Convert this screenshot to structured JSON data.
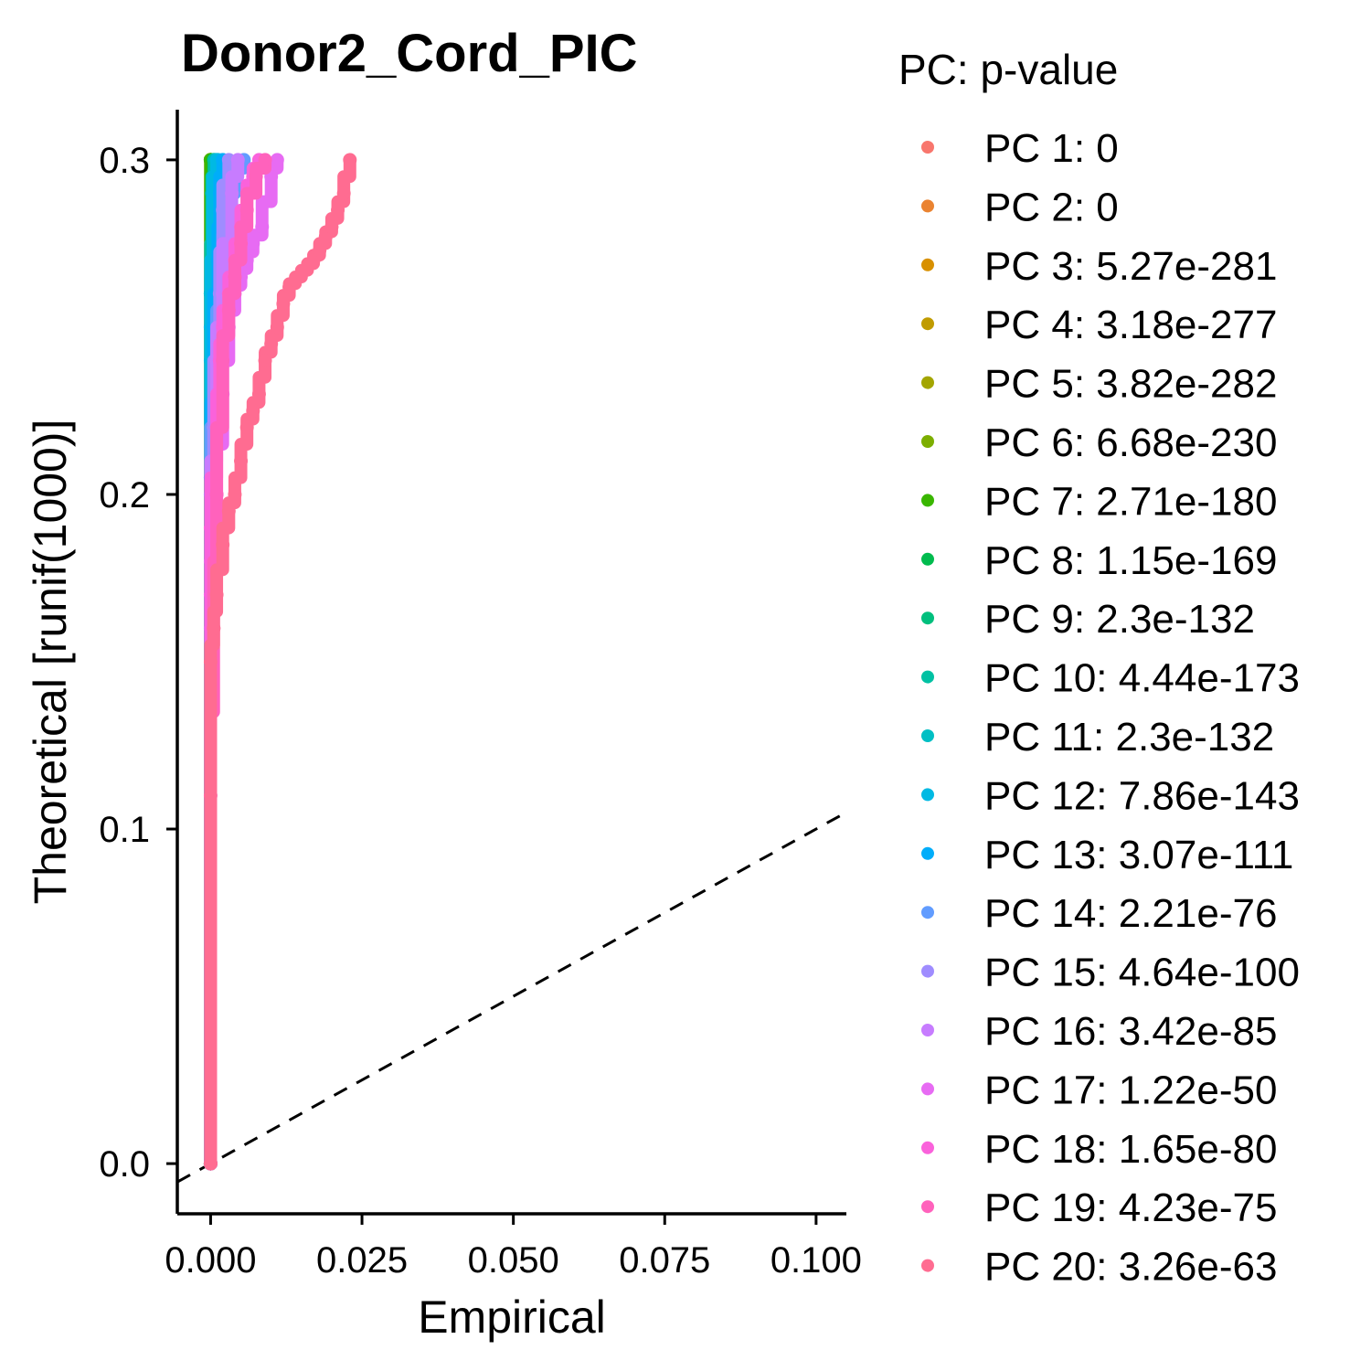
{
  "chart_data": {
    "type": "scatter",
    "title": "Donor2_Cord_PIC",
    "xlabel": "Empirical",
    "ylabel": "Theoretical [runif(1000)]",
    "xlim": [
      -0.0055,
      0.105
    ],
    "ylim": [
      -0.015,
      0.315
    ],
    "x_ticks": [
      0.0,
      0.025,
      0.05,
      0.075,
      0.1
    ],
    "x_tick_labels": [
      "0.000",
      "0.025",
      "0.050",
      "0.075",
      "0.100"
    ],
    "y_ticks": [
      0.0,
      0.1,
      0.2,
      0.3
    ],
    "y_tick_labels": [
      "0.0",
      "0.1",
      "0.2",
      "0.3"
    ],
    "grid": false,
    "legend_position": "right",
    "reference_line": {
      "style": "dashed",
      "color": "#000000",
      "slope": 1,
      "intercept": 0
    },
    "legend_title": "PC: p-value",
    "series": [
      {
        "name": "PC 1: 0",
        "color": "#F8766D",
        "x": [
          0.0,
          0.0
        ],
        "y": [
          0.0,
          0.3
        ]
      },
      {
        "name": "PC 2: 0",
        "color": "#EA8331",
        "x": [
          0.0,
          0.0
        ],
        "y": [
          0.0,
          0.3
        ]
      },
      {
        "name": "PC 3: 5.27e-281",
        "color": "#D89000",
        "x": [
          0.0,
          0.0
        ],
        "y": [
          0.0,
          0.3
        ]
      },
      {
        "name": "PC 4: 3.18e-277",
        "color": "#C09B00",
        "x": [
          0.0,
          0.0
        ],
        "y": [
          0.0,
          0.3
        ]
      },
      {
        "name": "PC 5: 3.82e-282",
        "color": "#A3A500",
        "x": [
          0.0,
          0.0
        ],
        "y": [
          0.0,
          0.3
        ]
      },
      {
        "name": "PC 6: 6.68e-230",
        "color": "#7CAE00",
        "x": [
          0.0,
          0.0
        ],
        "y": [
          0.0,
          0.3
        ]
      },
      {
        "name": "PC 7: 2.71e-180",
        "color": "#39B600",
        "x": [
          0.0,
          0.0
        ],
        "y": [
          0.0,
          0.3
        ]
      },
      {
        "name": "PC 8: 1.15e-169",
        "color": "#00BB4E",
        "x": [
          0.0,
          0.0,
          0.0002,
          0.0005
        ],
        "y": [
          0.0,
          0.26,
          0.29,
          0.3
        ]
      },
      {
        "name": "PC 9: 2.3e-132",
        "color": "#00BF7D",
        "x": [
          0.0,
          0.0,
          0.0003,
          0.0008
        ],
        "y": [
          0.0,
          0.25,
          0.29,
          0.3
        ]
      },
      {
        "name": "PC 10: 4.44e-173",
        "color": "#00C1A3",
        "x": [
          0.0,
          0.0,
          0.0002,
          0.0006
        ],
        "y": [
          0.0,
          0.26,
          0.29,
          0.3
        ]
      },
      {
        "name": "PC 11: 2.3e-132",
        "color": "#00BFC4",
        "x": [
          0.0,
          0.0,
          0.0005,
          0.0012
        ],
        "y": [
          0.0,
          0.24,
          0.29,
          0.3
        ]
      },
      {
        "name": "PC 12: 7.86e-143",
        "color": "#00B9E3",
        "x": [
          0.0,
          0.0,
          0.0004,
          0.001
        ],
        "y": [
          0.0,
          0.25,
          0.29,
          0.3
        ]
      },
      {
        "name": "PC 13: 3.07e-111",
        "color": "#00ADFA",
        "x": [
          0.0,
          0.0,
          0.0005,
          0.0012,
          0.0015,
          0.002
        ],
        "y": [
          0.0,
          0.205,
          0.25,
          0.27,
          0.29,
          0.3
        ]
      },
      {
        "name": "PC 14: 2.21e-76",
        "color": "#619CFF",
        "x": [
          0.0,
          0.0,
          0.001,
          0.002,
          0.003,
          0.004,
          0.0055
        ],
        "y": [
          0.0,
          0.2,
          0.24,
          0.27,
          0.285,
          0.295,
          0.3
        ]
      },
      {
        "name": "PC 15: 4.64e-100",
        "color": "#9F8CFF",
        "x": [
          0.0,
          0.0,
          0.0005,
          0.0015,
          0.002,
          0.003
        ],
        "y": [
          0.0,
          0.16,
          0.22,
          0.26,
          0.285,
          0.3
        ]
      },
      {
        "name": "PC 16: 3.42e-85",
        "color": "#C77CFF",
        "x": [
          0.0,
          0.0,
          0.001,
          0.002,
          0.0035,
          0.0045
        ],
        "y": [
          0.0,
          0.18,
          0.24,
          0.26,
          0.29,
          0.3
        ]
      },
      {
        "name": "PC 17: 1.22e-50",
        "color": "#E76BF3",
        "x": [
          0.0,
          0.0,
          0.001,
          0.002,
          0.003,
          0.004,
          0.005,
          0.006,
          0.007,
          0.0085,
          0.01,
          0.011
        ],
        "y": [
          0.0,
          0.17,
          0.2,
          0.23,
          0.25,
          0.26,
          0.265,
          0.27,
          0.275,
          0.28,
          0.295,
          0.3
        ]
      },
      {
        "name": "PC 18: 1.65e-80",
        "color": "#FA62DB",
        "x": [
          0.0,
          0.0,
          0.001,
          0.0015,
          0.002,
          0.003,
          0.004,
          0.005,
          0.006,
          0.007,
          0.008
        ],
        "y": [
          0.0,
          0.19,
          0.22,
          0.24,
          0.25,
          0.26,
          0.27,
          0.28,
          0.29,
          0.295,
          0.3
        ]
      },
      {
        "name": "PC 19: 4.23e-75",
        "color": "#FF62BC",
        "x": [
          0.0,
          0.0,
          0.0005,
          0.001,
          0.002,
          0.003,
          0.004,
          0.005,
          0.006,
          0.0075,
          0.009
        ],
        "y": [
          0.0,
          0.11,
          0.16,
          0.2,
          0.24,
          0.255,
          0.265,
          0.275,
          0.285,
          0.295,
          0.3
        ]
      },
      {
        "name": "PC 20: 3.26e-63",
        "color": "#FF6C91",
        "x": [
          0.0,
          0.0,
          0.0005,
          0.001,
          0.002,
          0.003,
          0.004,
          0.005,
          0.006,
          0.007,
          0.008,
          0.009,
          0.01,
          0.011,
          0.012,
          0.013,
          0.014,
          0.015,
          0.016,
          0.017,
          0.018,
          0.019,
          0.02,
          0.021,
          0.022,
          0.023
        ],
        "y": [
          0.0,
          0.15,
          0.16,
          0.17,
          0.185,
          0.195,
          0.2,
          0.21,
          0.22,
          0.225,
          0.23,
          0.24,
          0.245,
          0.25,
          0.257,
          0.262,
          0.264,
          0.266,
          0.268,
          0.27,
          0.273,
          0.277,
          0.28,
          0.285,
          0.29,
          0.3
        ]
      }
    ]
  }
}
